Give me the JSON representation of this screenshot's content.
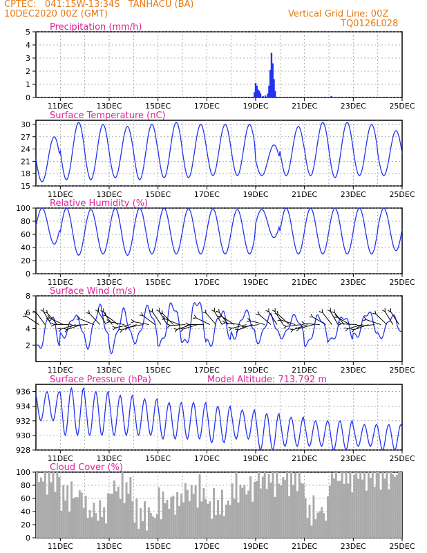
{
  "header": {
    "station": "CPTEC:   041:15W-13:34S   TANHACU (BA)",
    "run": "10DEC2020 00Z (GMT)",
    "vgrid": "Vertical Grid Line: 00Z",
    "code": "TQ0126L028"
  },
  "x_axis": {
    "ticks": [
      "11DEC",
      "13DEC",
      "15DEC",
      "17DEC",
      "19DEC",
      "21DEC",
      "23DEC",
      "25DEC"
    ],
    "tick_days": [
      11,
      13,
      15,
      17,
      19,
      21,
      23,
      25
    ],
    "range_days": [
      10,
      25
    ]
  },
  "chart_data": [
    {
      "type": "bar",
      "title": "Precipitation (mm/h)",
      "ylim": [
        0,
        5
      ],
      "yticks": [
        0,
        1,
        2,
        3,
        4,
        5
      ],
      "color": "#2233ee",
      "x_days": [
        18.95,
        19.0,
        19.05,
        19.1,
        19.15,
        19.2,
        19.3,
        19.4,
        19.5,
        19.55,
        19.6,
        19.65,
        19.7,
        19.75,
        19.8,
        21.7,
        22.1,
        22.5
      ],
      "values": [
        0.4,
        1.1,
        0.9,
        0.6,
        0.5,
        0.3,
        0.1,
        0.15,
        0.3,
        0.9,
        2.1,
        3.4,
        2.6,
        1.4,
        0.5,
        0.05,
        0.1,
        0.05
      ]
    },
    {
      "type": "line",
      "title": "Surface Temperature (nC)",
      "ylim": [
        15,
        31
      ],
      "yticks": [
        15,
        18,
        21,
        24,
        27,
        30
      ],
      "color": "#2233ee",
      "daily_min": [
        16,
        16.5,
        16.5,
        17,
        16.5,
        17,
        17,
        17.5,
        17.5,
        17.5,
        17.5,
        17.5,
        17,
        17.5,
        17.5
      ],
      "daily_max": [
        27,
        30.5,
        30,
        29.5,
        30,
        30.5,
        30,
        30,
        30,
        25,
        29.5,
        30.5,
        30.5,
        30,
        28.5
      ]
    },
    {
      "type": "line",
      "title": "Relative Humidity (%)",
      "ylim": [
        0,
        100
      ],
      "yticks": [
        0,
        20,
        40,
        60,
        80,
        100
      ],
      "color": "#2233ee",
      "daily_max": [
        100,
        100,
        98,
        100,
        100,
        100,
        99,
        99,
        98,
        98,
        100,
        100,
        100,
        100,
        100
      ],
      "daily_min": [
        45,
        28,
        30,
        28,
        30,
        30,
        30,
        30,
        30,
        55,
        30,
        30,
        30,
        30,
        35
      ]
    },
    {
      "type": "line",
      "title": "Surface Wind (m/s)",
      "ylim": [
        0,
        8
      ],
      "yticks": [
        2,
        4,
        6,
        8
      ],
      "color": "#2233ee",
      "daily_min": [
        1.5,
        3,
        2,
        1.5,
        2.5,
        2,
        2,
        2,
        3,
        2.5,
        3,
        2,
        2.5,
        3,
        3
      ],
      "daily_max": [
        5.5,
        5.5,
        6.5,
        6,
        6.5,
        7,
        7.5,
        6,
        6,
        5.5,
        5.5,
        5.5,
        5.5,
        6,
        5.5
      ]
    },
    {
      "type": "line",
      "title": "Surface Pressure (hPa)",
      "subtitle": "Model Altitude: 713.792 m",
      "ylim": [
        928,
        937
      ],
      "yticks": [
        928,
        930,
        932,
        934,
        936
      ],
      "color": "#2233ee",
      "daily_max": [
        936,
        936.5,
        936,
        935.5,
        935,
        934.5,
        934.5,
        934,
        933.5,
        933,
        932.5,
        932,
        932,
        931.5,
        931.5
      ],
      "daily_min": [
        932,
        930,
        930,
        930,
        930,
        929.5,
        929.5,
        929,
        929.5,
        928,
        928.5,
        928.5,
        928,
        928.5,
        928
      ]
    },
    {
      "type": "bar",
      "title": "Cloud Cover (%)",
      "ylim": [
        0,
        100
      ],
      "yticks": [
        0,
        20,
        40,
        60,
        80,
        100
      ],
      "color": "#aaaaaa",
      "daily_cover": [
        92,
        65,
        40,
        75,
        35,
        55,
        70,
        50,
        75,
        90,
        90,
        40,
        95,
        98,
        98
      ]
    }
  ]
}
